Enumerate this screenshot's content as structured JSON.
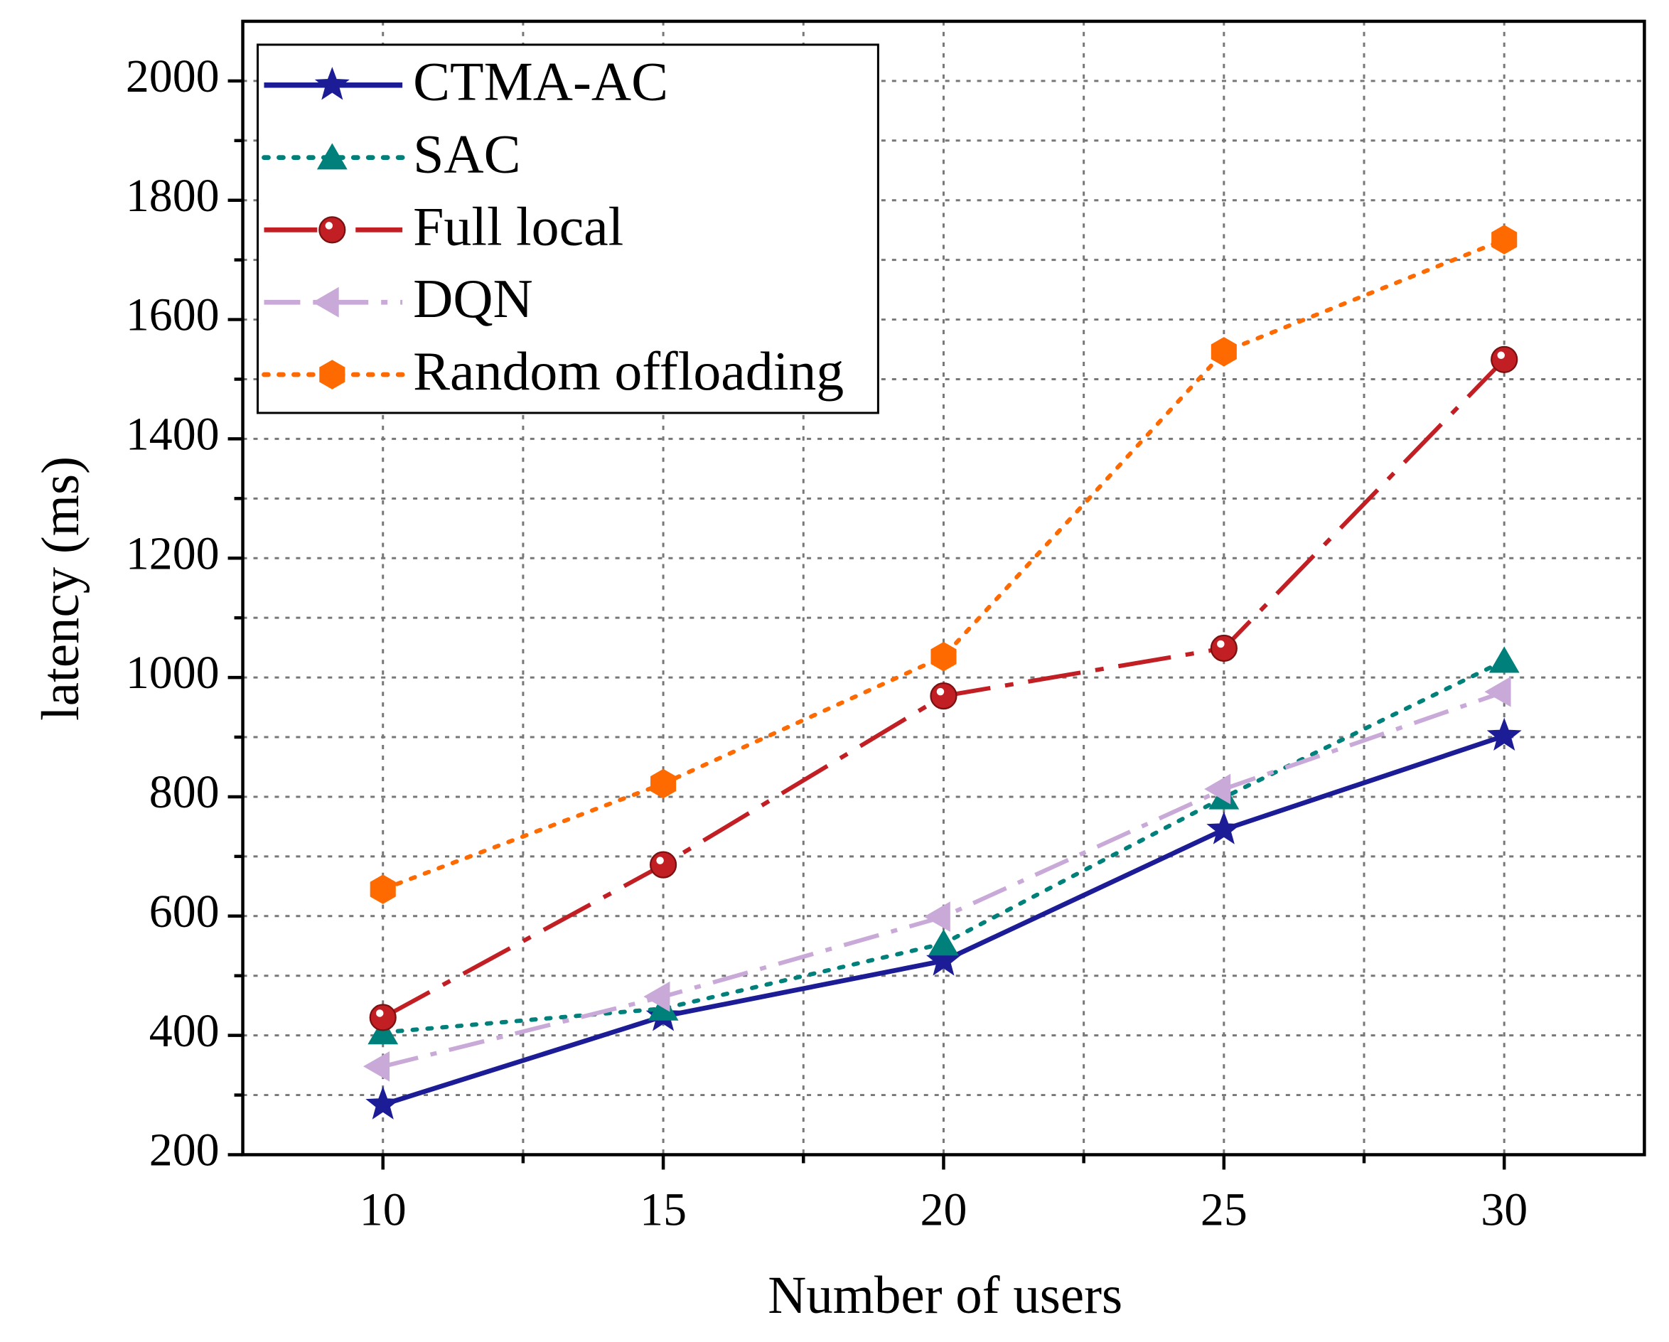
{
  "chart_data": {
    "type": "line",
    "x_label": "Number of users",
    "y_label": "latency (ms)",
    "x": [
      10,
      15,
      20,
      25,
      30
    ],
    "series": [
      {
        "name": "CTMA-AC",
        "color": "#1c1c96",
        "marker": "star",
        "line_style": "solid",
        "values": [
          284,
          432,
          525,
          745,
          902
        ]
      },
      {
        "name": "SAC",
        "color": "#00807a",
        "marker": "triangle",
        "line_style": "dotted",
        "values": [
          405,
          445,
          554,
          799,
          1028
        ]
      },
      {
        "name": "Full local",
        "color": "#c21f24",
        "marker": "circle",
        "line_style": "dashdotlong",
        "values": [
          430,
          686,
          969,
          1049,
          1533
        ]
      },
      {
        "name": "DQN",
        "color": "#c9a9d8",
        "marker": "left-triangle",
        "line_style": "dashdot",
        "values": [
          348,
          465,
          599,
          813,
          976
        ]
      },
      {
        "name": "Random offloading",
        "color": "#ff6a00",
        "marker": "hexagon",
        "line_style": "dotted",
        "values": [
          645,
          822,
          1035,
          1546,
          1734
        ]
      }
    ],
    "xlim": [
      7.5,
      32.5
    ],
    "ylim": [
      200,
      2100
    ],
    "xticks": [
      10,
      15,
      20,
      25,
      30
    ],
    "yticks": [
      200,
      400,
      600,
      800,
      1000,
      1200,
      1400,
      1600,
      1800,
      2000
    ],
    "x_minor_ticks": [
      12.5,
      17.5,
      22.5,
      27.5
    ],
    "y_minor_ticks": [
      300,
      500,
      700,
      900,
      1100,
      1300,
      1500,
      1700,
      1900
    ],
    "grid": true,
    "legend": "upper left"
  }
}
